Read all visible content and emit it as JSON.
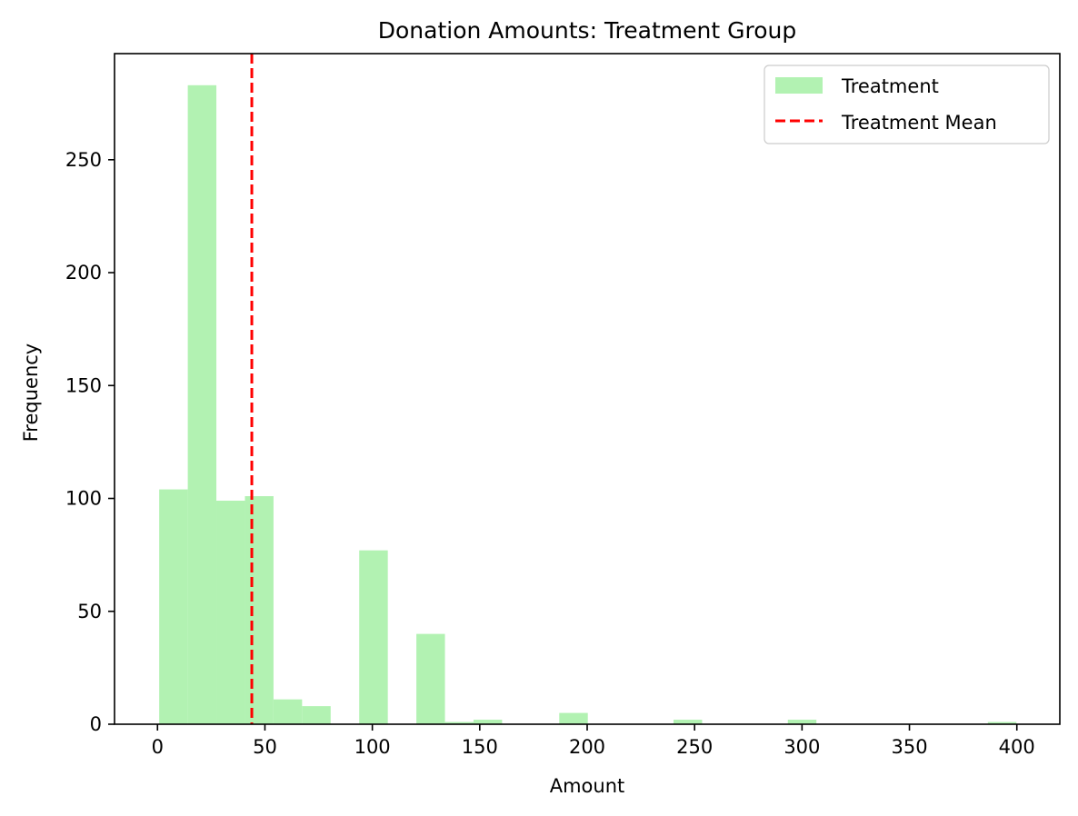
{
  "chart_data": {
    "type": "bar",
    "title": "Donation Amounts: Treatment Group",
    "xlabel": "Amount",
    "ylabel": "Frequency",
    "xlim": [
      -20,
      420
    ],
    "ylim": [
      0,
      297
    ],
    "xticks": [
      0,
      50,
      100,
      150,
      200,
      250,
      300,
      350,
      400
    ],
    "yticks": [
      0,
      50,
      100,
      150,
      200,
      250
    ],
    "grid": false,
    "legend_position": "top-right",
    "series": [
      {
        "name": "Treatment",
        "kind": "histogram",
        "color": "#b2f2b2",
        "bin_width": 13.3,
        "bins": [
          {
            "x0": 0.8,
            "count": 104
          },
          {
            "x0": 14.1,
            "count": 283
          },
          {
            "x0": 27.4,
            "count": 99
          },
          {
            "x0": 40.7,
            "count": 101
          },
          {
            "x0": 54.0,
            "count": 11
          },
          {
            "x0": 67.3,
            "count": 8
          },
          {
            "x0": 80.6,
            "count": 0
          },
          {
            "x0": 93.9,
            "count": 77
          },
          {
            "x0": 107.2,
            "count": 0
          },
          {
            "x0": 120.5,
            "count": 40
          },
          {
            "x0": 133.8,
            "count": 1
          },
          {
            "x0": 147.1,
            "count": 2
          },
          {
            "x0": 160.4,
            "count": 0
          },
          {
            "x0": 173.7,
            "count": 0
          },
          {
            "x0": 187.0,
            "count": 5
          },
          {
            "x0": 200.3,
            "count": 0
          },
          {
            "x0": 213.6,
            "count": 0
          },
          {
            "x0": 226.9,
            "count": 0
          },
          {
            "x0": 240.2,
            "count": 2
          },
          {
            "x0": 253.5,
            "count": 0
          },
          {
            "x0": 266.8,
            "count": 0
          },
          {
            "x0": 280.1,
            "count": 0
          },
          {
            "x0": 293.4,
            "count": 2
          },
          {
            "x0": 306.7,
            "count": 0
          },
          {
            "x0": 320.0,
            "count": 0
          },
          {
            "x0": 333.3,
            "count": 0
          },
          {
            "x0": 346.6,
            "count": 0
          },
          {
            "x0": 359.9,
            "count": 0
          },
          {
            "x0": 373.2,
            "count": 0
          },
          {
            "x0": 386.5,
            "count": 1
          }
        ]
      },
      {
        "name": "Treatment Mean",
        "kind": "vline",
        "color": "#ff0000",
        "x": 43.9
      }
    ]
  }
}
